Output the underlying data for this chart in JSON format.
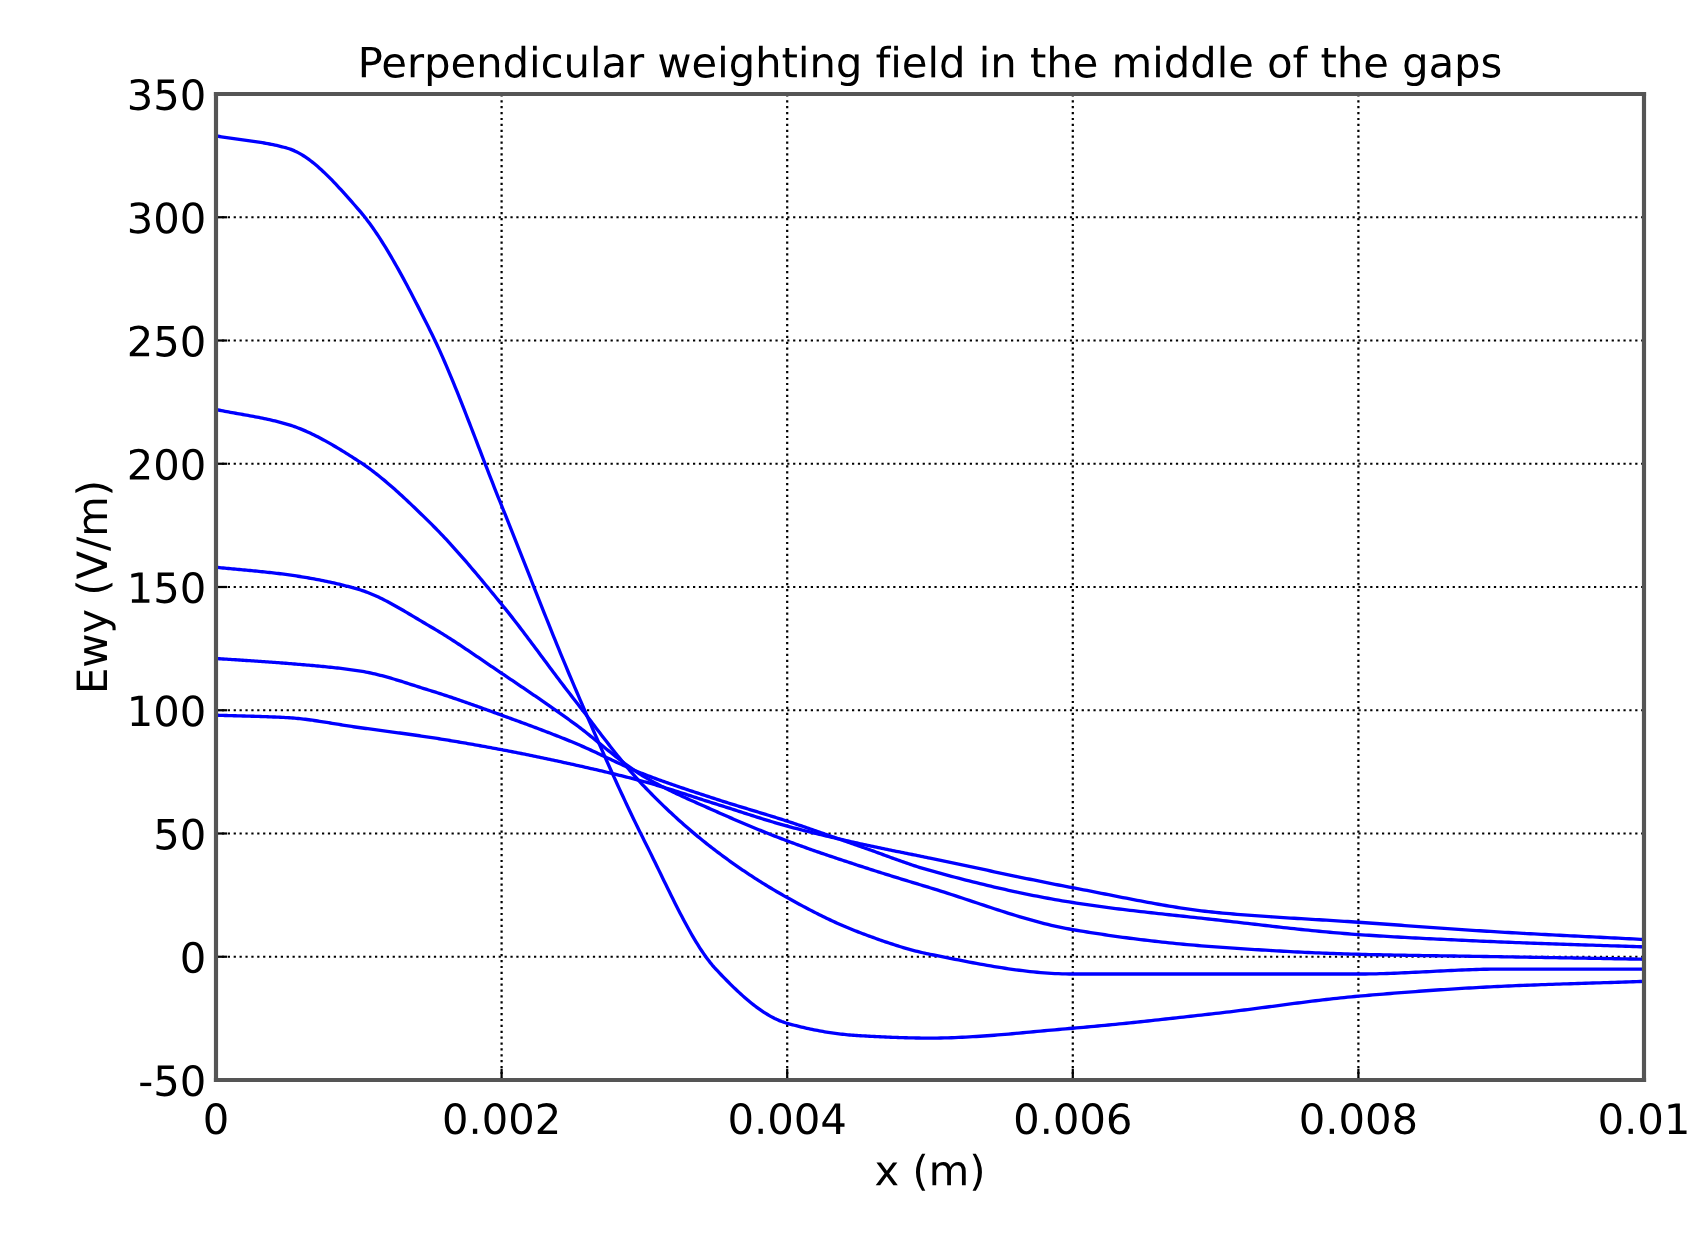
{
  "chart_data": {
    "type": "line",
    "title": "Perpendicular weighting field in the middle of the gaps",
    "xlabel": "x (m)",
    "ylabel": "Ewy (V/m)",
    "x": [
      0,
      0.0005,
      0.001,
      0.0015,
      0.002,
      0.0025,
      0.003,
      0.0035,
      0.004,
      0.0045,
      0.005,
      0.006,
      0.007,
      0.008,
      0.009,
      0.01
    ],
    "series": [
      {
        "color": "#0000ff",
        "values": [
          333,
          328,
          303,
          254,
          183,
          111,
          47,
          -5,
          -27,
          -32,
          -33,
          -29,
          -23,
          -16,
          -12,
          -10
        ]
      },
      {
        "color": "#0000ff",
        "values": [
          222,
          216,
          201,
          176,
          143,
          105,
          69,
          43,
          24,
          10,
          1,
          -7,
          -7,
          -7,
          -5,
          -5
        ]
      },
      {
        "color": "#0000ff",
        "values": [
          158,
          155,
          149,
          134,
          115,
          95,
          73,
          59,
          47,
          37,
          28,
          11,
          4,
          1,
          0,
          -1
        ]
      },
      {
        "color": "#0000ff",
        "values": [
          121,
          119,
          116,
          108,
          98,
          87,
          74,
          64,
          55,
          45,
          35,
          22,
          15,
          9,
          6,
          4
        ]
      },
      {
        "color": "#0000ff",
        "values": [
          98,
          97,
          93,
          89,
          84,
          78,
          71,
          62,
          53,
          46,
          40,
          28,
          18,
          14,
          10,
          7
        ]
      }
    ],
    "xlim": [
      0,
      0.01
    ],
    "xticks": [
      0,
      0.002,
      0.004,
      0.006,
      0.008,
      0.01
    ],
    "ylim": [
      -50,
      350
    ],
    "yticks": [
      -50,
      0,
      50,
      100,
      150,
      200,
      250,
      300,
      350
    ],
    "grid": true,
    "line_style": "solid",
    "marker": "none"
  }
}
